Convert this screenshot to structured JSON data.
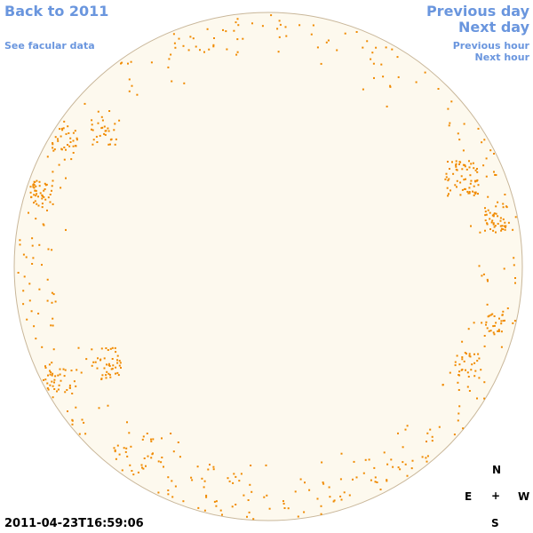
{
  "nav": {
    "back": "Back to 2011",
    "facular": "See facular data",
    "previous_day": "Previous day",
    "next_day": "Next day",
    "previous_hour": "Previous hour",
    "next_hour": "Next hour"
  },
  "timestamp": "2011-04-23T16:59:06",
  "compass": {
    "north": "N",
    "east": "E",
    "center": "+",
    "west": "W",
    "south": "S"
  },
  "colors": {
    "link": "#6a96de",
    "disk_fill": "#fdf9ee",
    "disk_border": "#c9b79a",
    "facula": "#f08a00"
  }
}
